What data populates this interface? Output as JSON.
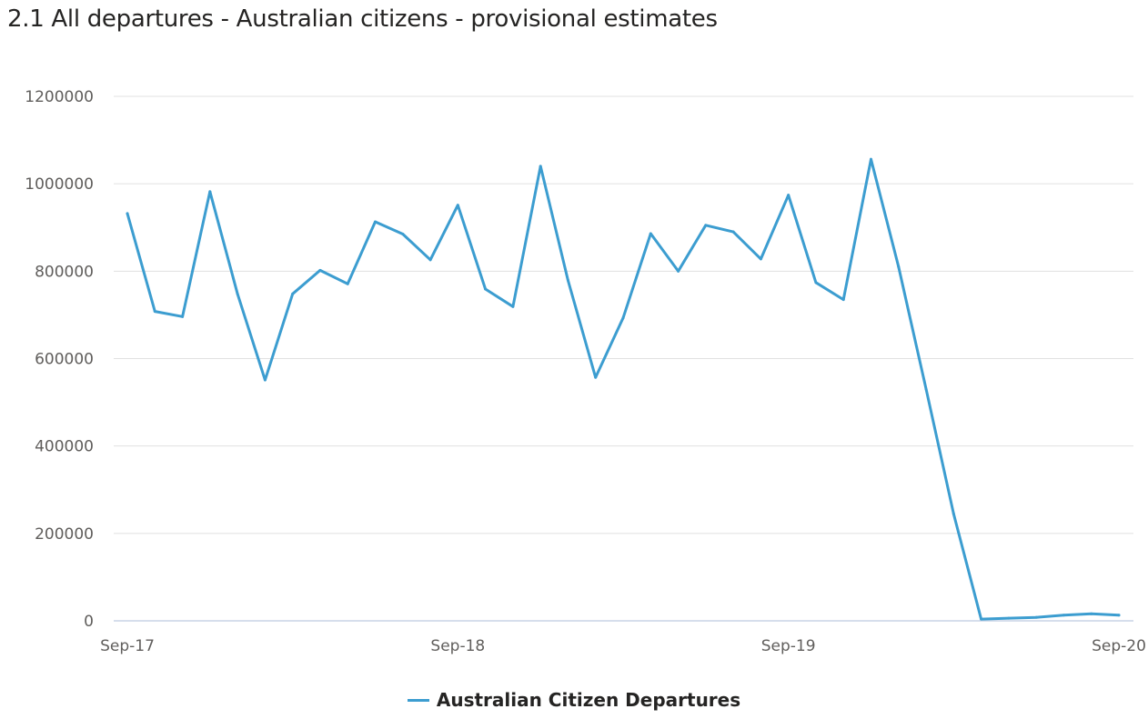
{
  "title": "2.1 All departures - Australian citizens - provisional estimates",
  "colors": {
    "series": "#3c9dd0",
    "grid": "#e1e1e1",
    "axis": "#c8d3e6",
    "text": "#605e5c"
  },
  "chart_data": {
    "type": "line",
    "title": "2.1 All departures - Australian citizens - provisional estimates",
    "xlabel": "",
    "ylabel": "",
    "ylim": [
      0,
      1200000
    ],
    "y_ticks": [
      0,
      200000,
      400000,
      600000,
      800000,
      1000000,
      1200000
    ],
    "y_tick_labels": [
      "0",
      "200000",
      "400000",
      "600000",
      "800000",
      "1000000",
      "1200000"
    ],
    "x_tick_labels": [
      "Sep-17",
      "Sep-18",
      "Sep-19",
      "Sep-20"
    ],
    "x_tick_index": [
      0,
      12,
      24,
      36
    ],
    "grid": true,
    "legend_position": "bottom",
    "x": [
      "Sep-17",
      "Oct-17",
      "Nov-17",
      "Dec-17",
      "Jan-18",
      "Feb-18",
      "Mar-18",
      "Apr-18",
      "May-18",
      "Jun-18",
      "Jul-18",
      "Aug-18",
      "Sep-18",
      "Oct-18",
      "Nov-18",
      "Dec-18",
      "Jan-19",
      "Feb-19",
      "Mar-19",
      "Apr-19",
      "May-19",
      "Jun-19",
      "Jul-19",
      "Aug-19",
      "Sep-19",
      "Oct-19",
      "Nov-19",
      "Dec-19",
      "Jan-20",
      "Feb-20",
      "Mar-20",
      "Apr-20",
      "May-20",
      "Jun-20",
      "Jul-20",
      "Aug-20",
      "Sep-20"
    ],
    "series": [
      {
        "name": "Australian Citizen Departures",
        "values": [
          932000,
          708000,
          696000,
          982000,
          748000,
          551000,
          748000,
          802000,
          771000,
          913000,
          885000,
          826000,
          951000,
          759000,
          719000,
          1040000,
          779000,
          557000,
          693000,
          886000,
          800000,
          905000,
          890000,
          828000,
          974000,
          774000,
          735000,
          1056000,
          810000,
          530000,
          245000,
          4000,
          6000,
          8000,
          13000,
          16000,
          13000
        ]
      }
    ]
  }
}
